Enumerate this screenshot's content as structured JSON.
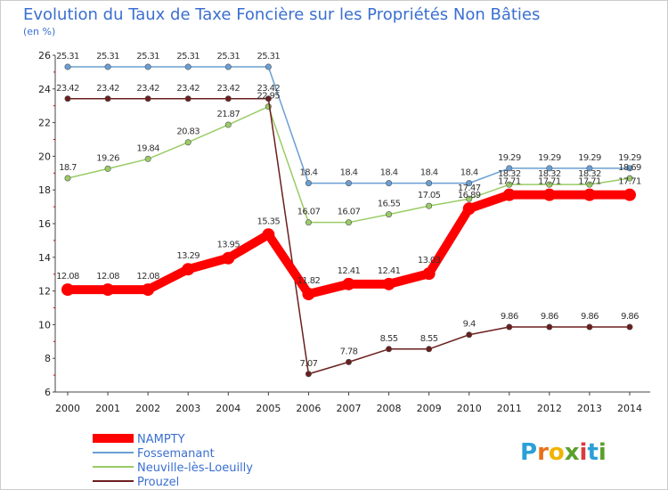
{
  "chart_data": {
    "type": "line",
    "title": "Evolution du Taux de Taxe Foncière sur les Propriétés Non Bâties",
    "subtitle": "(en %)",
    "xlabel": "",
    "ylabel": "",
    "x": [
      "2000",
      "2001",
      "2002",
      "2003",
      "2004",
      "2005",
      "2006",
      "2007",
      "2008",
      "2009",
      "2010",
      "2011",
      "2012",
      "2013",
      "2014"
    ],
    "ylim": [
      6,
      26
    ],
    "yticks": [
      "6",
      "8",
      "10",
      "12",
      "14",
      "16",
      "18",
      "20",
      "22",
      "24",
      "26"
    ],
    "grid": false,
    "legend_position": "bottom-left",
    "series": [
      {
        "name": "NAMPTY",
        "color": "#ff0000",
        "values": [
          12.08,
          12.08,
          12.08,
          13.29,
          13.95,
          15.35,
          11.82,
          12.41,
          12.41,
          13.03,
          16.89,
          17.71,
          17.71,
          17.71,
          17.71
        ],
        "labels": [
          "12.08",
          "12.08",
          "12.08",
          "13.29",
          "13.95",
          "15.35",
          "11.82",
          "12.41",
          "12.41",
          "13.03",
          "16.89",
          "17.71",
          "17.71",
          "17.71",
          "17.71"
        ]
      },
      {
        "name": "Fossemanant",
        "color": "#6a9fd4",
        "values": [
          25.31,
          25.31,
          25.31,
          25.31,
          25.31,
          25.31,
          18.4,
          18.4,
          18.4,
          18.4,
          18.4,
          19.29,
          19.29,
          19.29,
          19.29
        ],
        "labels": [
          "25.31",
          "25.31",
          "25.31",
          "25.31",
          "25.31",
          "25.31",
          "18.4",
          "18.4",
          "18.4",
          "18.4",
          "18.4",
          "19.29",
          "19.29",
          "19.29",
          "19.29"
        ]
      },
      {
        "name": "Neuville-lès-Loeuilly",
        "color": "#99cc66",
        "values": [
          18.7,
          19.26,
          19.84,
          20.83,
          21.87,
          22.95,
          16.07,
          16.07,
          16.55,
          17.05,
          17.47,
          18.32,
          18.32,
          18.32,
          18.69
        ],
        "labels": [
          "18.7",
          "19.26",
          "19.84",
          "20.83",
          "21.87",
          "22.95",
          "16.07",
          "16.07",
          "16.55",
          "17.05",
          "17.47",
          "18.32",
          "18.32",
          "18.32",
          "18.69"
        ]
      },
      {
        "name": "Prouzel",
        "color": "#6b1e1e",
        "values": [
          23.42,
          23.42,
          23.42,
          23.42,
          23.42,
          23.42,
          7.07,
          7.78,
          8.55,
          8.55,
          9.4,
          9.86,
          9.86,
          9.86,
          9.86
        ],
        "labels": [
          "23.42",
          "23.42",
          "23.42",
          "23.42",
          "23.42",
          "23.42",
          "7.07",
          "7.78",
          "8.55",
          "8.55",
          "9.4",
          "9.86",
          "9.86",
          "9.86",
          "9.86"
        ]
      }
    ]
  },
  "logo": {
    "letters": [
      "P",
      "r",
      "o",
      "x",
      "i",
      "t",
      "i"
    ],
    "colors": [
      "#2aa0d8",
      "#e8701a",
      "#f0b400",
      "#5aa02c",
      "#d83c3c",
      "#2aa0d8",
      "#5aa02c"
    ]
  }
}
